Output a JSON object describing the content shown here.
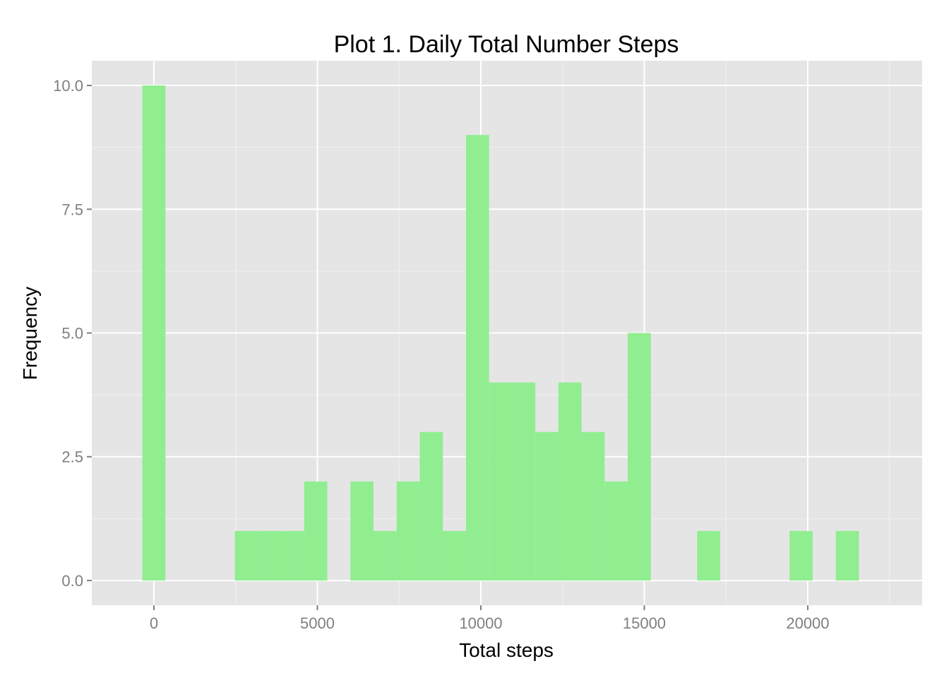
{
  "chart_data": {
    "type": "bar",
    "title": "Plot 1. Daily Total Number Steps",
    "xlabel": "Total steps",
    "ylabel": "Frequency",
    "xlim": [
      -1900,
      23500
    ],
    "ylim": [
      -0.5,
      10.5
    ],
    "x_ticks": [
      0,
      5000,
      10000,
      15000,
      20000
    ],
    "x_tick_labels": [
      "0",
      "5000",
      "10000",
      "15000",
      "20000"
    ],
    "y_ticks": [
      0,
      2.5,
      5,
      7.5,
      10
    ],
    "y_tick_labels": [
      "0.0",
      "2.5",
      "5.0",
      "7.5",
      "10.0"
    ],
    "bin_width": 707,
    "bins": [
      {
        "x": 0,
        "count": 10
      },
      {
        "x": 2829,
        "count": 1
      },
      {
        "x": 3536,
        "count": 1
      },
      {
        "x": 4243,
        "count": 1
      },
      {
        "x": 4950,
        "count": 2
      },
      {
        "x": 6364,
        "count": 2
      },
      {
        "x": 7071,
        "count": 1
      },
      {
        "x": 7778,
        "count": 2
      },
      {
        "x": 8485,
        "count": 3
      },
      {
        "x": 9192,
        "count": 1
      },
      {
        "x": 9899,
        "count": 9
      },
      {
        "x": 10606,
        "count": 4
      },
      {
        "x": 11313,
        "count": 4
      },
      {
        "x": 12020,
        "count": 3
      },
      {
        "x": 12727,
        "count": 4
      },
      {
        "x": 13434,
        "count": 3
      },
      {
        "x": 14141,
        "count": 2
      },
      {
        "x": 14848,
        "count": 5
      },
      {
        "x": 16969,
        "count": 1
      },
      {
        "x": 19797,
        "count": 1
      },
      {
        "x": 21211,
        "count": 1
      }
    ],
    "grid": true,
    "colors": {
      "bar": "#90ee90",
      "panel_background": "#e5e5e5",
      "gridline_major": "#ffffff",
      "gridline_minor": "#f2f2f2",
      "tick_label": "#7f7f7f"
    }
  }
}
